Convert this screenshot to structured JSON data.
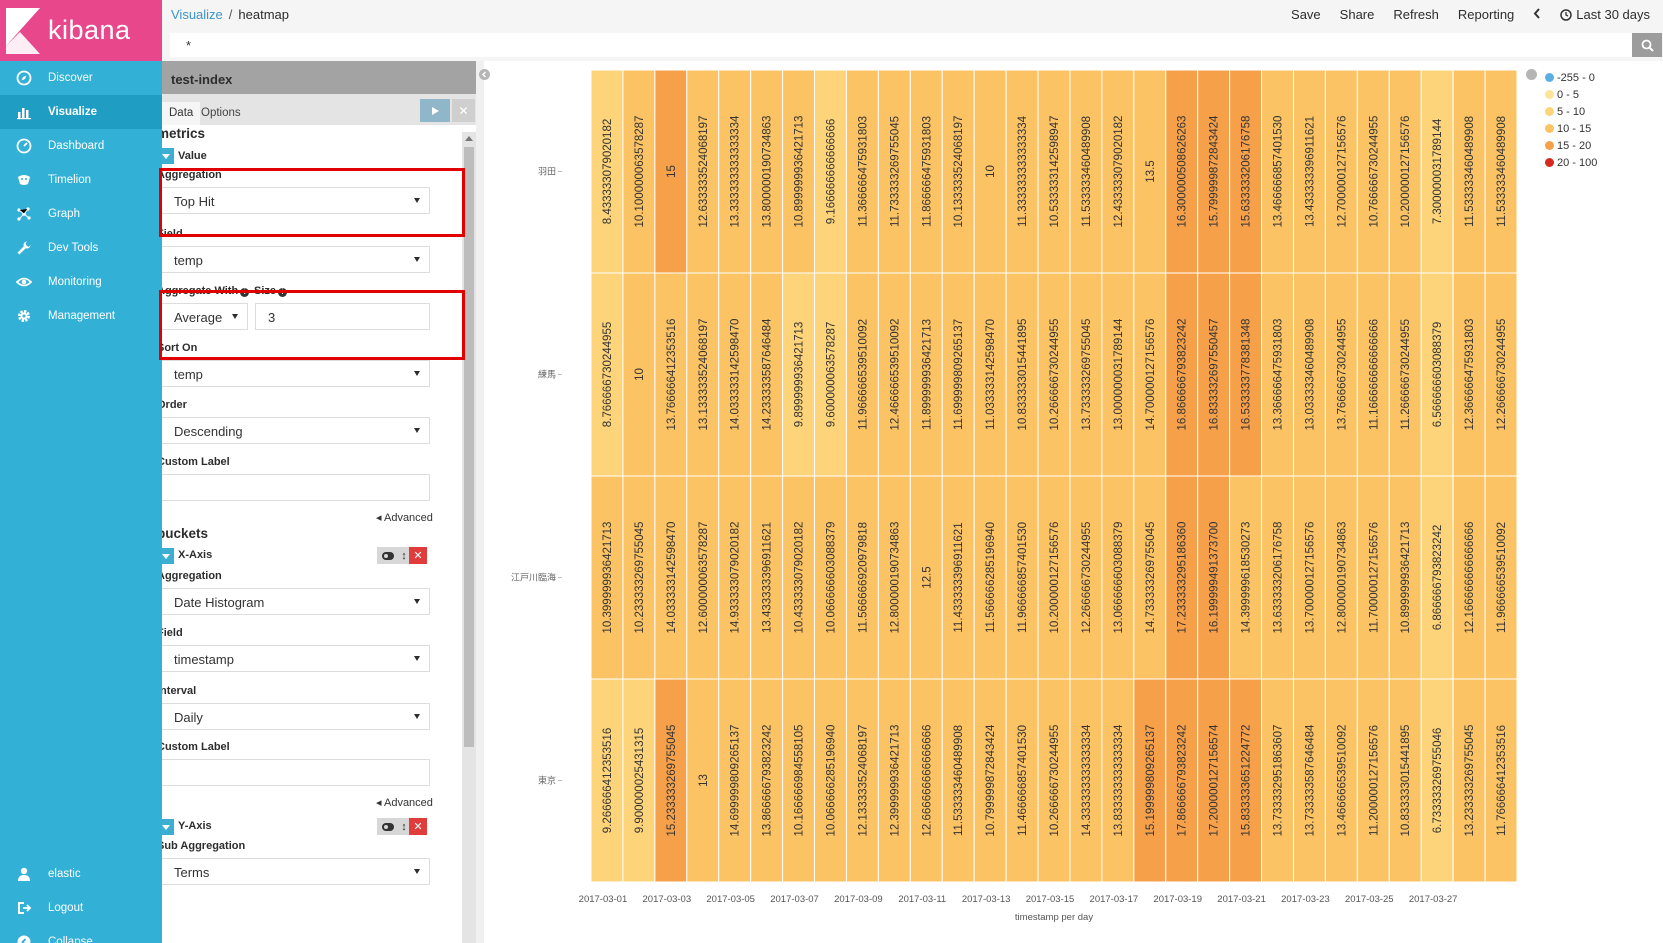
{
  "app": {
    "logo_text": "kibana"
  },
  "sidebar": {
    "items": [
      {
        "label": "Discover",
        "icon": "compass-icon"
      },
      {
        "label": "Visualize",
        "icon": "bar-chart-icon"
      },
      {
        "label": "Dashboard",
        "icon": "dashboard-icon"
      },
      {
        "label": "Timelion",
        "icon": "timelion-icon"
      },
      {
        "label": "Graph",
        "icon": "graph-icon"
      },
      {
        "label": "Dev Tools",
        "icon": "wrench-icon"
      },
      {
        "label": "Monitoring",
        "icon": "eye-icon"
      },
      {
        "label": "Management",
        "icon": "gear-icon"
      }
    ],
    "bottom": [
      {
        "label": "elastic",
        "icon": "user-icon"
      },
      {
        "label": "Logout",
        "icon": "logout-icon"
      },
      {
        "label": "Collapse",
        "icon": "collapse-icon"
      }
    ]
  },
  "topbar": {
    "breadcrumb": [
      "Visualize",
      "heatmap"
    ],
    "menu": [
      "Save",
      "Share",
      "Refresh",
      "Reporting"
    ],
    "time_range": "Last 30 days"
  },
  "query": {
    "value": "*"
  },
  "editor": {
    "index": "test-index",
    "tabs": [
      "Data",
      "Options"
    ],
    "metrics_title": "metrics",
    "metric_name": "Value",
    "aggregation_label": "Aggregation",
    "aggregation_value": "Top Hit",
    "field_label": "Field",
    "field_value": "temp",
    "aggregate_with_label": "Aggregate With",
    "aggregate_with_value": "Average",
    "size_label": "Size",
    "size_value": "3",
    "sort_on_label": "Sort On",
    "sort_on_value": "temp",
    "order_label": "Order",
    "order_value": "Descending",
    "custom_label_label": "Custom Label",
    "custom_label_value": "",
    "advanced": "Advanced",
    "buckets_title": "buckets",
    "x_axis": {
      "name": "X-Axis",
      "aggregation_label": "Aggregation",
      "aggregation_value": "Date Histogram",
      "field_label": "Field",
      "field_value": "timestamp",
      "interval_label": "Interval",
      "interval_value": "Daily",
      "custom_label_label": "Custom Label",
      "custom_label_value": ""
    },
    "y_axis": {
      "name": "Y-Axis",
      "sub_aggregation_label": "Sub Aggregation",
      "sub_aggregation_value": "Terms"
    }
  },
  "legend": [
    {
      "label": "-255 - 0",
      "color": "#5aaee0"
    },
    {
      "label": "0 - 5",
      "color": "#fde29a"
    },
    {
      "label": "5 - 10",
      "color": "#fdd47a"
    },
    {
      "label": "10 - 15",
      "color": "#fbc364"
    },
    {
      "label": "15 - 20",
      "color": "#f6a04a"
    },
    {
      "label": "20 - 100",
      "color": "#d42a20"
    }
  ],
  "chart_data": {
    "type": "heatmap",
    "xlabel": "timestamp per day",
    "x_tick_labels": [
      "2017-03-01",
      "2017-03-03",
      "2017-03-05",
      "2017-03-07",
      "2017-03-09",
      "2017-03-11",
      "2017-03-13",
      "2017-03-15",
      "2017-03-17",
      "2017-03-19",
      "2017-03-21",
      "2017-03-23",
      "2017-03-25",
      "2017-03-27"
    ],
    "rows": [
      "羽田",
      "練馬",
      "江戸川臨海",
      "東京"
    ],
    "values": [
      [
        "8.433333079020182",
        "10.100000063578287",
        "15",
        "12.633333524068197",
        "13.333333333333334",
        "13.800000190734863",
        "10.899999936421713",
        "9.166666666666666",
        "11.366666475931803",
        "11.733333269755045",
        "11.866666475931803",
        "10.133333524068197",
        "10",
        "11.333333333333334",
        "10.533333142598947",
        "11.533333460489908",
        "12.433333079020182",
        "13.5",
        "16.300000508626263",
        "15.799999872843424",
        "15.633333206176758",
        "13.466666857401530",
        "13.433333396911621",
        "12.700000127156576",
        "10.766666730244955",
        "10.200000127156576",
        "7.300000031789144",
        "11.533333460489908",
        "11.533333460489908"
      ],
      [
        "8.766666730244955",
        "10",
        "13.766666412353516",
        "13.133333524068197",
        "14.033333142598470",
        "14.233333587646484",
        "9.899999936421713",
        "9.600000063578287",
        "11.966666539510092",
        "12.466666539510092",
        "11.899999936421713",
        "11.699999809265137",
        "11.033333142598470",
        "10.833333015441895",
        "10.266666730244955",
        "13.733333269755045",
        "13.000000031789144",
        "14.700000127156576",
        "16.866666793823242",
        "16.833332697550457",
        "16.533333778381348",
        "13.366666475931803",
        "13.033333460489908",
        "13.766666730244955",
        "11.166666666666666",
        "11.266666730244955",
        "6.566666603088379",
        "12.366666475931803",
        "12.266666730244955"
      ],
      [
        "10.399999936421713",
        "10.233333269755045",
        "14.033333142598470",
        "12.600000063578287",
        "14.933333079020182",
        "13.433333396911621",
        "10.433333079020182",
        "10.066666603088379",
        "11.566666920979818",
        "12.800000190734863",
        "12.5",
        "11.433333396911621",
        "11.566666285196940",
        "11.966666857401530",
        "10.200000127156576",
        "12.266666730244955",
        "13.066666603088379",
        "14.733333269755045",
        "17.233333295186360",
        "16.199999491373700",
        "14.399999618530273",
        "13.633333206176758",
        "13.700000127156576",
        "12.800000190734863",
        "11.700000127156576",
        "10.899999936421713",
        "6.866666793823242",
        "12.166666666666666",
        "11.966666539510092"
      ],
      [
        "9.266666412353516",
        "9.900000025431315",
        "15.233333269755045",
        "13",
        "14.699999809265137",
        "13.866666793823242",
        "10.166666984558105",
        "10.066666285196940",
        "12.133333524068197",
        "12.399999936421713",
        "12.666666666666666",
        "11.533333460489908",
        "10.799999872843424",
        "11.466666857401530",
        "10.266666730244955",
        "14.333333333333334",
        "13.833333333333334",
        "15.199999809265137",
        "17.866666793823242",
        "17.200000127156574",
        "15.833333651224772",
        "13.733332951863607",
        "13.733333587646484",
        "13.466666539510092",
        "11.200000127156576",
        "10.833333015441895",
        "6.733333269755046",
        "13.233333269755045",
        "11.766666412353516"
      ]
    ],
    "legend_ranges": [
      "-255 - 0",
      "0 - 5",
      "5 - 10",
      "10 - 15",
      "15 - 20",
      "20 - 100"
    ]
  }
}
